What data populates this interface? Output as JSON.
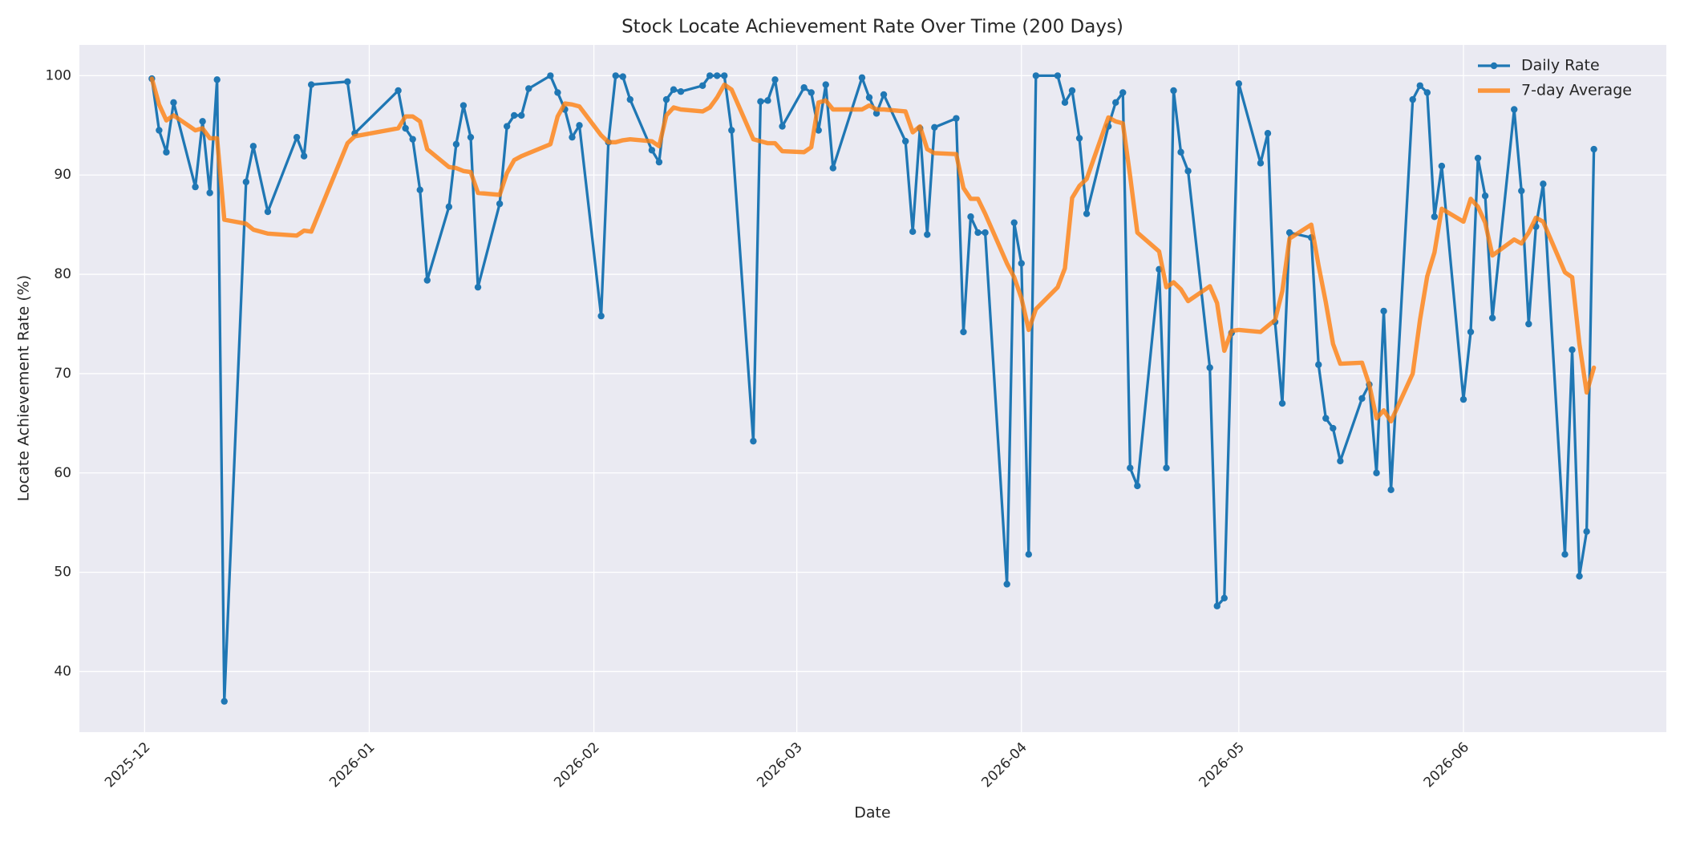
{
  "chart_data": {
    "type": "line",
    "title": "Stock Locate Achievement Rate Over Time (200 Days)",
    "x_label": "Date",
    "y_label": "Locate Achievement Rate (%)",
    "x": [
      "2025-12-02",
      "2025-12-03",
      "2025-12-04",
      "2025-12-05",
      "2025-12-08",
      "2025-12-09",
      "2025-12-10",
      "2025-12-11",
      "2025-12-12",
      "2025-12-15",
      "2025-12-16",
      "2025-12-18",
      "2025-12-22",
      "2025-12-23",
      "2025-12-24",
      "2025-12-29",
      "2025-12-30",
      "2026-01-05",
      "2026-01-06",
      "2026-01-07",
      "2026-01-08",
      "2026-01-09",
      "2026-01-12",
      "2026-01-13",
      "2026-01-14",
      "2026-01-15",
      "2026-01-16",
      "2026-01-19",
      "2026-01-20",
      "2026-01-21",
      "2026-01-22",
      "2026-01-23",
      "2026-01-26",
      "2026-01-27",
      "2026-01-28",
      "2026-01-29",
      "2026-01-30",
      "2026-02-02",
      "2026-02-03",
      "2026-02-04",
      "2026-02-05",
      "2026-02-06",
      "2026-02-09",
      "2026-02-10",
      "2026-02-11",
      "2026-02-12",
      "2026-02-13",
      "2026-02-16",
      "2026-02-17",
      "2026-02-18",
      "2026-02-19",
      "2026-02-20",
      "2026-02-23",
      "2026-02-24",
      "2026-02-25",
      "2026-02-26",
      "2026-02-27",
      "2026-03-02",
      "2026-03-03",
      "2026-03-04",
      "2026-03-05",
      "2026-03-06",
      "2026-03-10",
      "2026-03-11",
      "2026-03-12",
      "2026-03-13",
      "2026-03-16",
      "2026-03-17",
      "2026-03-18",
      "2026-03-19",
      "2026-03-20",
      "2026-03-23",
      "2026-03-24",
      "2026-03-25",
      "2026-03-26",
      "2026-03-27",
      "2026-03-30",
      "2026-03-31",
      "2026-04-01",
      "2026-04-02",
      "2026-04-03",
      "2026-04-06",
      "2026-04-07",
      "2026-04-08",
      "2026-04-09",
      "2026-04-10",
      "2026-04-13",
      "2026-04-14",
      "2026-04-15",
      "2026-04-16",
      "2026-04-17",
      "2026-04-20",
      "2026-04-21",
      "2026-04-22",
      "2026-04-23",
      "2026-04-24",
      "2026-04-27",
      "2026-04-28",
      "2026-04-29",
      "2026-04-30",
      "2026-05-01",
      "2026-05-04",
      "2026-05-05",
      "2026-05-06",
      "2026-05-07",
      "2026-05-08",
      "2026-05-11",
      "2026-05-12",
      "2026-05-13",
      "2026-05-14",
      "2026-05-15",
      "2026-05-18",
      "2026-05-19",
      "2026-05-20",
      "2026-05-21",
      "2026-05-22",
      "2026-05-25",
      "2026-05-26",
      "2026-05-27",
      "2026-05-28",
      "2026-05-29",
      "2026-06-01",
      "2026-06-02",
      "2026-06-03",
      "2026-06-04",
      "2026-06-05",
      "2026-06-08",
      "2026-06-09",
      "2026-06-10",
      "2026-06-11",
      "2026-06-12",
      "2026-06-15",
      "2026-06-16",
      "2026-06-17",
      "2026-06-18",
      "2026-06-19"
    ],
    "series": [
      {
        "name": "Daily Rate",
        "color": "#1f77b4",
        "marker": true,
        "values": [
          99.7,
          94.5,
          92.3,
          97.3,
          88.8,
          95.4,
          88.2,
          99.6,
          37.0,
          89.3,
          92.9,
          86.3,
          93.8,
          91.9,
          99.1,
          99.4,
          94.2,
          98.5,
          94.7,
          93.6,
          88.5,
          79.4,
          86.8,
          93.1,
          97.0,
          93.8,
          78.7,
          87.1,
          94.9,
          96.0,
          96.0,
          98.7,
          100.0,
          98.3,
          96.6,
          93.8,
          95.0,
          75.8,
          93.3,
          100.0,
          99.9,
          97.6,
          92.5,
          91.3,
          97.6,
          98.6,
          98.4,
          99.0,
          100.0,
          100.0,
          100.0,
          94.5,
          63.2,
          97.4,
          97.5,
          99.6,
          94.9,
          98.8,
          98.3,
          94.5,
          99.1,
          90.7,
          99.8,
          97.8,
          96.2,
          98.1,
          93.4,
          84.3,
          94.7,
          84.0,
          94.8,
          95.7,
          74.2,
          85.8,
          84.2,
          84.2,
          48.8,
          85.2,
          81.1,
          51.8,
          100.0,
          100.0,
          97.3,
          98.5,
          93.7,
          86.1,
          94.9,
          97.3,
          98.3,
          60.5,
          58.7,
          80.5,
          60.5,
          98.5,
          92.3,
          90.4,
          70.6,
          46.6,
          47.4,
          74.1,
          99.2,
          91.2,
          94.2,
          75.2,
          67.0,
          84.2,
          83.7,
          70.9,
          65.5,
          64.5,
          61.2,
          67.5,
          68.9,
          60.0,
          76.3,
          58.3,
          97.6,
          99.0,
          98.3,
          85.8,
          90.9,
          67.4,
          74.2,
          91.7,
          87.9,
          75.6,
          96.6,
          88.4,
          75.0,
          84.8,
          89.1,
          51.8,
          72.4,
          49.6,
          54.1,
          92.6
        ]
      },
      {
        "name": "7-day Average",
        "color": "#ff7f0e",
        "marker": false,
        "values": [
          99.7,
          97.1,
          95.5,
          96.0,
          94.5,
          94.7,
          93.7,
          93.7,
          85.5,
          85.1,
          84.5,
          84.1,
          83.9,
          84.4,
          84.3,
          93.2,
          93.9,
          94.7,
          95.9,
          95.9,
          95.4,
          92.6,
          90.8,
          90.7,
          90.4,
          90.3,
          88.2,
          88.0,
          90.2,
          91.5,
          91.9,
          92.2,
          93.1,
          95.9,
          97.2,
          97.1,
          96.9,
          94.0,
          93.3,
          93.3,
          93.5,
          93.6,
          93.4,
          92.9,
          96.0,
          96.8,
          96.6,
          96.4,
          96.8,
          97.8,
          99.1,
          98.6,
          93.6,
          93.4,
          93.2,
          93.2,
          92.4,
          92.3,
          92.8,
          97.3,
          97.5,
          96.6,
          96.6,
          97.0,
          96.6,
          96.6,
          96.4,
          94.3,
          94.9,
          92.6,
          92.2,
          92.1,
          88.7,
          87.6,
          87.6,
          86.1,
          81.1,
          79.7,
          77.6,
          74.4,
          76.5,
          78.7,
          80.6,
          87.7,
          88.9,
          89.6,
          95.8,
          95.4,
          95.2,
          89.9,
          84.2,
          82.3,
          78.7,
          79.2,
          78.5,
          77.3,
          78.8,
          77.1,
          72.3,
          74.3,
          74.4,
          74.2,
          74.8,
          75.4,
          78.3,
          83.6,
          85.0,
          80.9,
          77.2,
          73.0,
          71.0,
          71.1,
          68.9,
          65.5,
          66.3,
          65.2,
          70.0,
          75.4,
          79.8,
          82.2,
          86.6,
          85.3,
          87.6,
          86.8,
          85.2,
          81.9,
          83.5,
          83.1,
          84.2,
          85.7,
          85.3,
          80.2,
          79.7,
          73.0,
          68.1,
          70.6
        ]
      }
    ],
    "xlim": [
      "2025-11-22",
      "2026-06-29"
    ],
    "xticks": [
      {
        "value": "2025-12-01",
        "label": "2025-12"
      },
      {
        "value": "2026-01-01",
        "label": "2026-01"
      },
      {
        "value": "2026-02-01",
        "label": "2026-02"
      },
      {
        "value": "2026-03-01",
        "label": "2026-03"
      },
      {
        "value": "2026-04-01",
        "label": "2026-04"
      },
      {
        "value": "2026-05-01",
        "label": "2026-05"
      },
      {
        "value": "2026-06-01",
        "label": "2026-06"
      }
    ],
    "ylim": [
      33.9,
      103.1
    ],
    "yticks": [
      40,
      50,
      60,
      70,
      80,
      90,
      100
    ],
    "grid": true,
    "legend": "upper right"
  }
}
